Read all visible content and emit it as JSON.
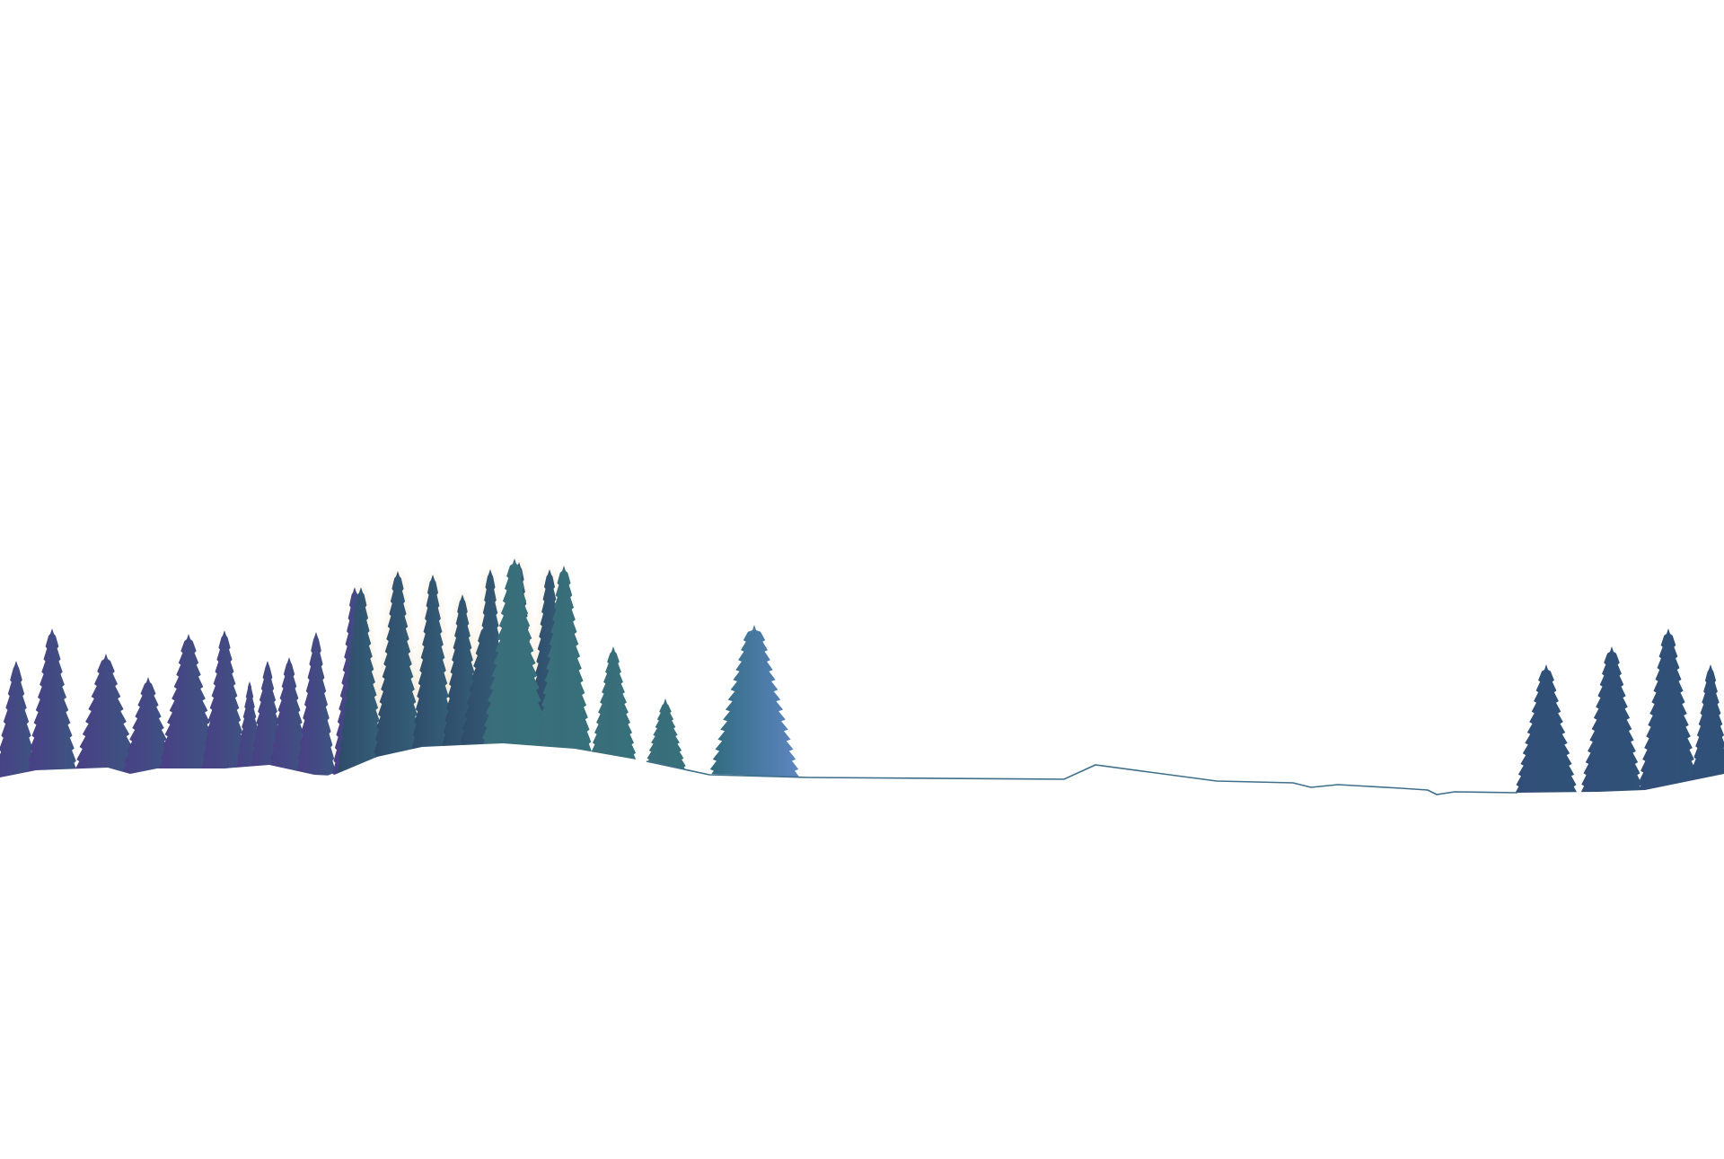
{
  "scene": {
    "background_color": "#ffffff",
    "snow_color": "#ffffff",
    "horizon_line_color": "#3f6f8a",
    "glow_color": "#f3e3c8",
    "groups": {
      "left_forest": {
        "colors": [
          "#4a3f86",
          "#3c5680"
        ],
        "tree_count": 11
      },
      "middle_forest": {
        "colors": [
          "#2f4a6a",
          "#35627a"
        ],
        "tree_count": 9
      },
      "teal_trees": {
        "colors": [
          "#3a6d7a",
          "#36707a"
        ],
        "tree_count": 2
      },
      "lone_tree": {
        "colors": [
          "#2f6a7c",
          "#5f86c2"
        ],
        "tree_count": 1
      },
      "right_forest": {
        "colors": [
          "#324e78",
          "#2f5277"
        ],
        "tree_count": 4
      }
    }
  }
}
